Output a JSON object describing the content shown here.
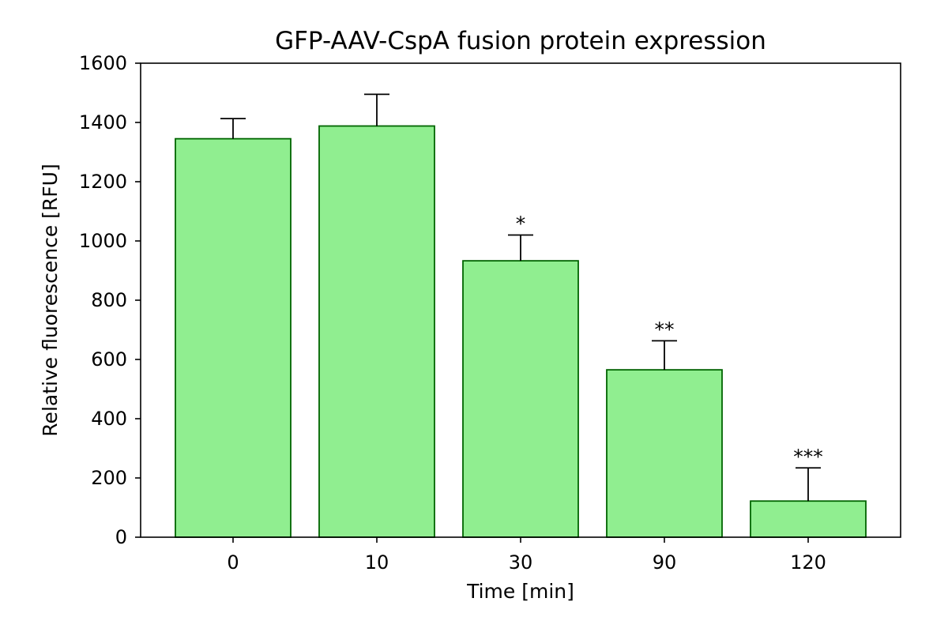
{
  "chart_data": {
    "type": "bar",
    "title": "GFP-AAV-CspA fusion protein expression",
    "xlabel": "Time [min]",
    "ylabel": "Relative fluorescence [RFU]",
    "categories": [
      "0",
      "10",
      "30",
      "90",
      "120"
    ],
    "values": [
      1345,
      1388,
      933,
      565,
      122
    ],
    "error_plus": [
      68,
      107,
      87,
      98,
      112
    ],
    "annotations": [
      "",
      "",
      "*",
      "**",
      "***"
    ],
    "ylim": [
      0,
      1600
    ],
    "yticks": [
      0,
      200,
      400,
      600,
      800,
      1000,
      1200,
      1400,
      1600
    ],
    "grid": false,
    "legend": "none",
    "colors": {
      "bar_fill": "#90ee90",
      "bar_edge": "#006400",
      "error_bar": "#000000",
      "axes": "#000000"
    }
  }
}
